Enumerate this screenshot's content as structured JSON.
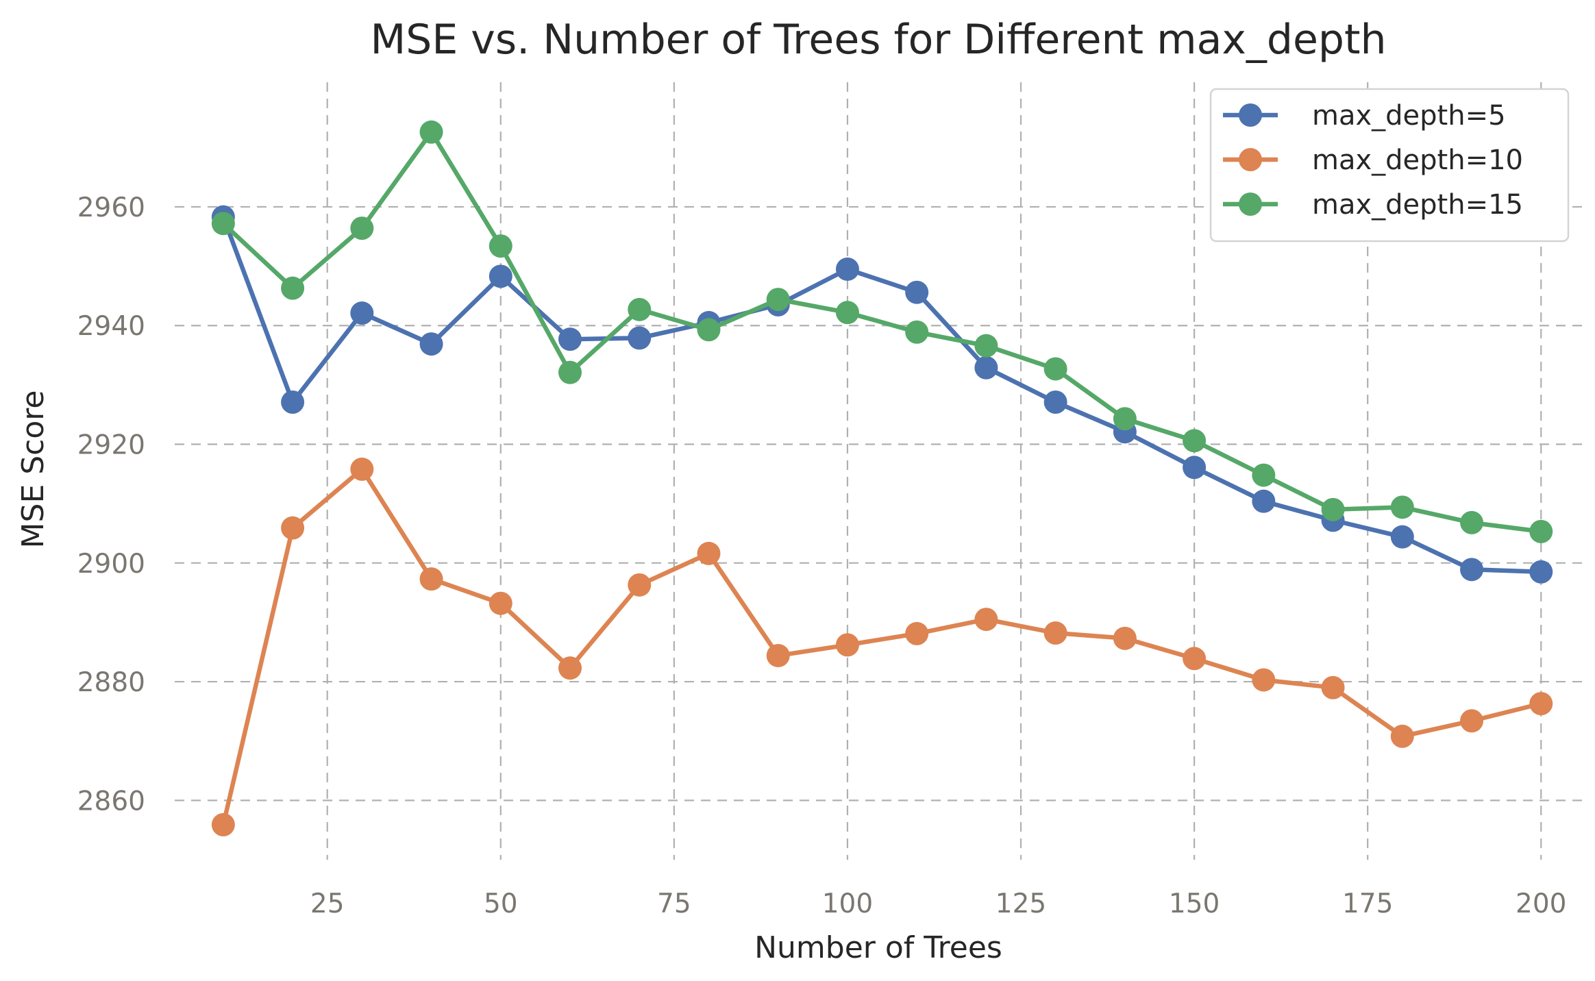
{
  "chart_data": {
    "type": "line",
    "title": "MSE vs. Number of Trees for Different max_depth",
    "xlabel": "Number of Trees",
    "ylabel": "MSE Score",
    "xlim": [
      3,
      206
    ],
    "ylim": [
      2850,
      2981
    ],
    "xticks": [
      25,
      50,
      75,
      100,
      125,
      150,
      175,
      200
    ],
    "yticks": [
      2860,
      2880,
      2900,
      2920,
      2940,
      2960
    ],
    "grid": true,
    "legend_position": "top-right",
    "x": [
      10,
      20,
      30,
      40,
      50,
      60,
      70,
      80,
      90,
      100,
      110,
      120,
      130,
      140,
      150,
      160,
      170,
      180,
      190,
      200
    ],
    "series": [
      {
        "name": "max_depth=5",
        "color": "#4c72b0",
        "values": [
          2958.3,
          2927.1,
          2942.1,
          2936.9,
          2948.3,
          2937.7,
          2937.9,
          2940.5,
          2943.5,
          2949.5,
          2945.6,
          2932.9,
          2927.1,
          2922.1,
          2916.1,
          2910.4,
          2907.2,
          2904.4,
          2898.9,
          2898.5
        ]
      },
      {
        "name": "max_depth=10",
        "color": "#dd8452",
        "values": [
          2855.9,
          2905.9,
          2915.8,
          2897.3,
          2893.2,
          2882.3,
          2896.3,
          2901.6,
          2884.4,
          2886.2,
          2888.1,
          2890.5,
          2888.2,
          2887.3,
          2883.9,
          2880.3,
          2879.0,
          2870.8,
          2873.4,
          2876.3
        ]
      },
      {
        "name": "max_depth=15",
        "color": "#55a868",
        "values": [
          2957.2,
          2946.3,
          2956.4,
          2972.6,
          2953.4,
          2932.1,
          2942.7,
          2939.3,
          2944.4,
          2942.2,
          2938.9,
          2936.6,
          2932.7,
          2924.3,
          2920.6,
          2914.8,
          2909.0,
          2909.4,
          2906.8,
          2905.3
        ]
      }
    ]
  }
}
